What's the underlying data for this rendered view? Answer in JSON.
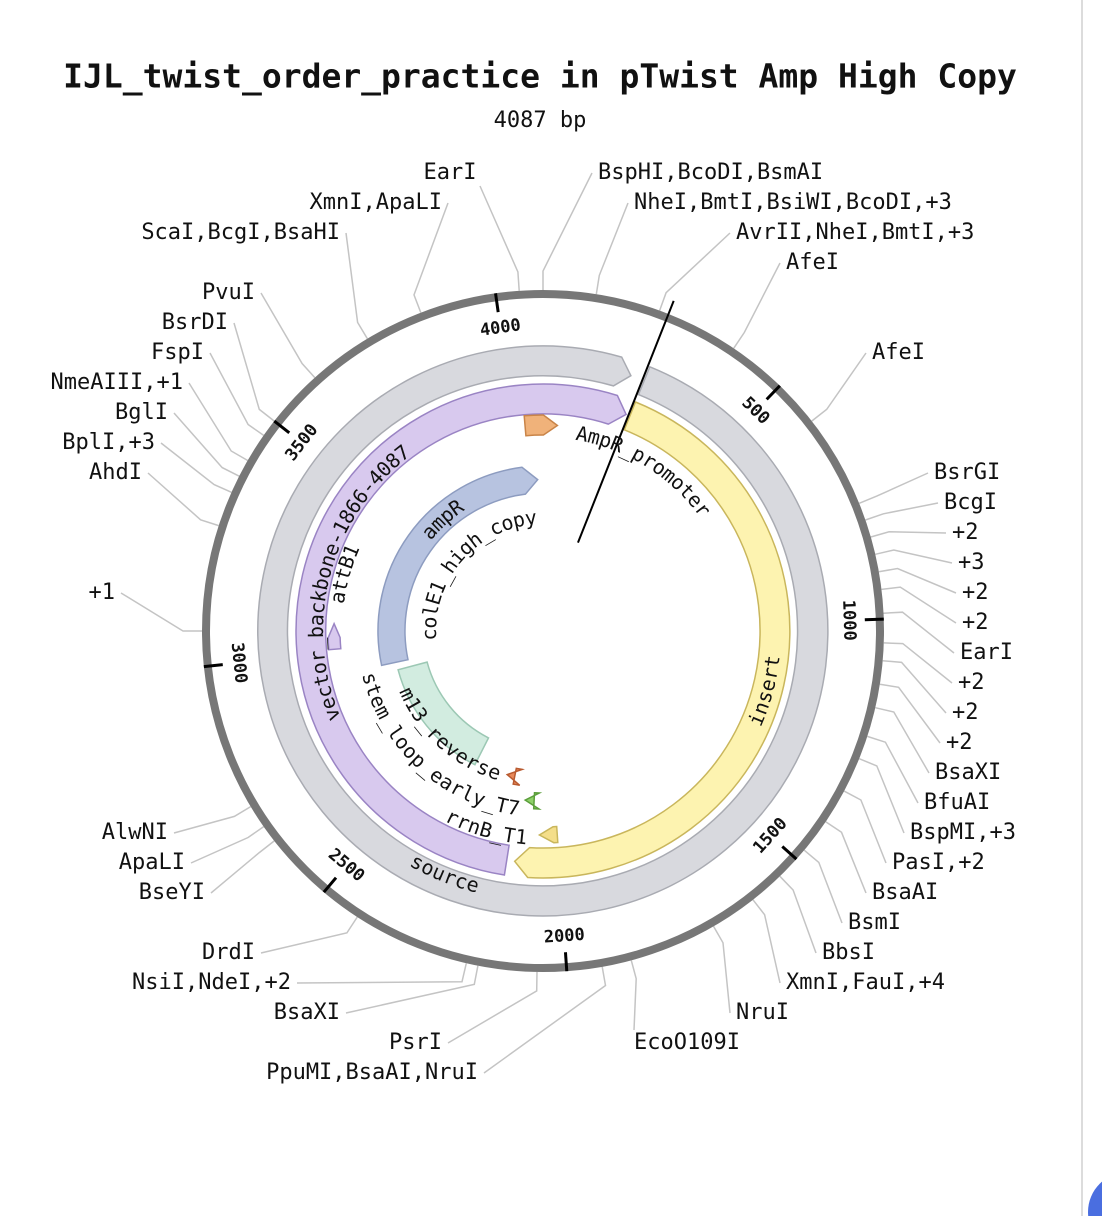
{
  "header": {
    "title": "IJL_twist_order_practice in pTwist Amp High Copy",
    "subtitle": "4087 bp"
  },
  "ticks": [
    "500",
    "1000",
    "1500",
    "2000",
    "2500",
    "3000",
    "3500",
    "4000"
  ],
  "features": [
    "source",
    "vector_backbone-1866-4087",
    "insert",
    "AmpR_promoter",
    "ampR",
    "colE1_high_copy",
    "attB1",
    "m13_reverse",
    "stem_loop_early_T7",
    "rrnB_T1"
  ],
  "enzymes": [
    "EarI",
    "BspHI,BcoDI,BsmAI",
    "XmnI,ApaLI",
    "NheI,BmtI,BsiWI,BcoDI,+3",
    "ScaI,BcgI,BsaHI",
    "AvrII,NheI,BmtI,+3",
    "AfeI",
    "AfeI",
    "PvuI",
    "BsrDI",
    "FspI",
    "NmeAIII,+1",
    "BglI",
    "BplI,+3",
    "AhdI",
    "+1",
    "BsrGI",
    "BcgI",
    "+2",
    "+3",
    "+2",
    "+2",
    "EarI",
    "+2",
    "+2",
    "+2",
    "BsaXI",
    "BfuAI",
    "BspMI,+3",
    "PasI,+2",
    "BsaAI",
    "BsmI",
    "BbsI",
    "XmnI,FauI,+4",
    "NruI",
    "EcoO109I",
    "AlwNI",
    "ApaLI",
    "BseYI",
    "DrdI",
    "NsiI,NdeI,+2",
    "BsaXI",
    "PsrI",
    "PpuMI,BsaAI,NruI"
  ]
}
